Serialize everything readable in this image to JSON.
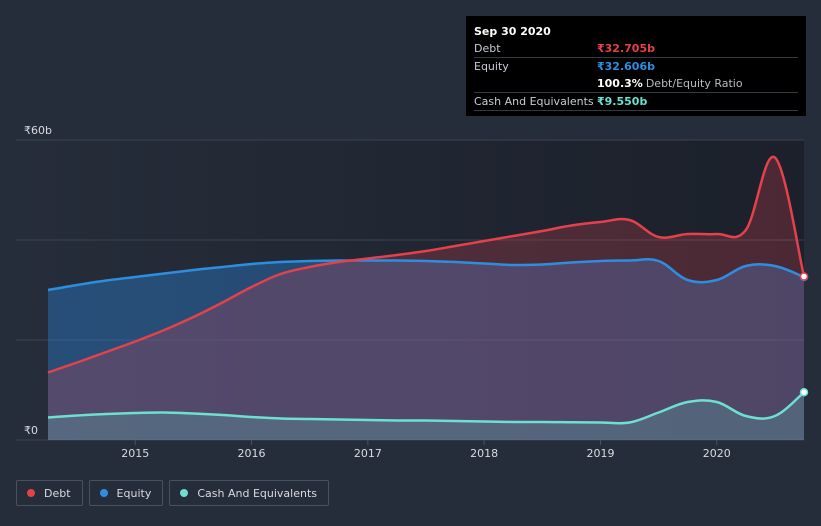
{
  "colors": {
    "background": "#262d3a",
    "debt": "#e4414d",
    "equity": "#2d8ee0",
    "cash": "#6de0d0"
  },
  "tooltip": {
    "date": "Sep 30 2020",
    "rows": [
      {
        "label": "Debt",
        "value": "₹32.705b",
        "color": "#e4414d",
        "extra": ""
      },
      {
        "label": "Equity",
        "value": "₹32.606b",
        "color": "#2d8ee0",
        "extra": ""
      },
      {
        "label": "",
        "value": "100.3%",
        "color": "#ffffff",
        "extra": "Debt/Equity Ratio"
      },
      {
        "label": "Cash And Equivalents",
        "value": "₹9.550b",
        "color": "#6de0d0",
        "extra": ""
      }
    ]
  },
  "legend": [
    {
      "label": "Debt",
      "color": "#e4414d"
    },
    {
      "label": "Equity",
      "color": "#2d8ee0"
    },
    {
      "label": "Cash And Equivalents",
      "color": "#6de0d0"
    }
  ],
  "chart_data": {
    "type": "area",
    "title": "",
    "xlabel": "",
    "ylabel": "",
    "y_unit": "₹ billions",
    "ylim": [
      0,
      60
    ],
    "y_tick_labels": [
      {
        "value": 60,
        "label": "₹60b"
      },
      {
        "value": 0,
        "label": "₹0"
      }
    ],
    "y_gridlines": [
      0,
      20,
      40,
      60
    ],
    "xlim": [
      2014.25,
      2020.75
    ],
    "x_ticks": [
      2015,
      2016,
      2017,
      2018,
      2019,
      2020
    ],
    "grid": true,
    "legend_position": "bottom-left",
    "series": [
      {
        "name": "Debt",
        "color": "#e4414d",
        "points": [
          [
            2014.25,
            13.5
          ],
          [
            2014.5,
            15.5
          ],
          [
            2014.75,
            17.6
          ],
          [
            2015.0,
            19.7
          ],
          [
            2015.25,
            22.0
          ],
          [
            2015.5,
            24.6
          ],
          [
            2015.75,
            27.5
          ],
          [
            2016.0,
            30.6
          ],
          [
            2016.25,
            33.2
          ],
          [
            2016.5,
            34.6
          ],
          [
            2016.75,
            35.6
          ],
          [
            2017.0,
            36.3
          ],
          [
            2017.25,
            37.0
          ],
          [
            2017.5,
            37.8
          ],
          [
            2017.75,
            38.8
          ],
          [
            2018.0,
            39.8
          ],
          [
            2018.25,
            40.8
          ],
          [
            2018.5,
            41.8
          ],
          [
            2018.75,
            42.9
          ],
          [
            2019.0,
            43.6
          ],
          [
            2019.25,
            44.0
          ],
          [
            2019.5,
            40.6
          ],
          [
            2019.75,
            41.2
          ],
          [
            2020.0,
            41.2
          ],
          [
            2020.25,
            42.0
          ],
          [
            2020.5,
            56.5
          ],
          [
            2020.75,
            32.7
          ]
        ]
      },
      {
        "name": "Equity",
        "color": "#2d8ee0",
        "points": [
          [
            2014.25,
            30.0
          ],
          [
            2014.5,
            31.0
          ],
          [
            2014.75,
            31.9
          ],
          [
            2015.0,
            32.6
          ],
          [
            2015.25,
            33.3
          ],
          [
            2015.5,
            34.0
          ],
          [
            2015.75,
            34.6
          ],
          [
            2016.0,
            35.2
          ],
          [
            2016.25,
            35.6
          ],
          [
            2016.5,
            35.8
          ],
          [
            2016.75,
            35.9
          ],
          [
            2017.0,
            35.9
          ],
          [
            2017.25,
            35.9
          ],
          [
            2017.5,
            35.8
          ],
          [
            2017.75,
            35.6
          ],
          [
            2018.0,
            35.3
          ],
          [
            2018.25,
            35.0
          ],
          [
            2018.5,
            35.1
          ],
          [
            2018.75,
            35.5
          ],
          [
            2019.0,
            35.8
          ],
          [
            2019.25,
            35.9
          ],
          [
            2019.5,
            35.8
          ],
          [
            2019.75,
            32.0
          ],
          [
            2020.0,
            32.0
          ],
          [
            2020.25,
            34.8
          ],
          [
            2020.5,
            34.8
          ],
          [
            2020.75,
            32.6
          ]
        ]
      },
      {
        "name": "Cash And Equivalents",
        "color": "#6de0d0",
        "points": [
          [
            2014.25,
            4.5
          ],
          [
            2014.5,
            4.9
          ],
          [
            2014.75,
            5.2
          ],
          [
            2015.0,
            5.4
          ],
          [
            2015.25,
            5.5
          ],
          [
            2015.5,
            5.3
          ],
          [
            2015.75,
            5.0
          ],
          [
            2016.0,
            4.6
          ],
          [
            2016.25,
            4.3
          ],
          [
            2016.5,
            4.2
          ],
          [
            2016.75,
            4.1
          ],
          [
            2017.0,
            4.0
          ],
          [
            2017.25,
            3.9
          ],
          [
            2017.5,
            3.9
          ],
          [
            2017.75,
            3.8
          ],
          [
            2018.0,
            3.7
          ],
          [
            2018.25,
            3.6
          ],
          [
            2018.5,
            3.6
          ],
          [
            2018.75,
            3.55
          ],
          [
            2019.0,
            3.5
          ],
          [
            2019.25,
            3.5
          ],
          [
            2019.5,
            5.5
          ],
          [
            2019.75,
            7.6
          ],
          [
            2020.0,
            7.6
          ],
          [
            2020.25,
            4.8
          ],
          [
            2020.5,
            4.8
          ],
          [
            2020.75,
            9.55
          ]
        ]
      }
    ]
  }
}
